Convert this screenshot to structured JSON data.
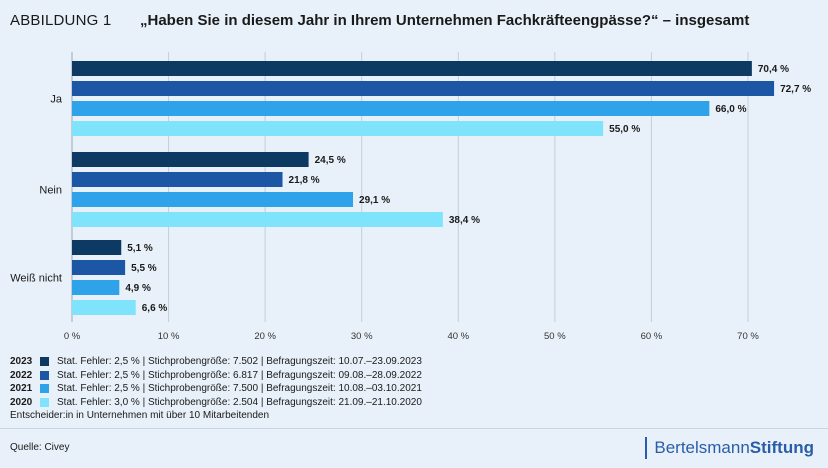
{
  "header": {
    "figure_label": "ABBILDUNG 1",
    "title": "„Haben Sie in diesem Jahr in Ihrem Unternehmen Fachkräfteengpässe?“ – insgesamt"
  },
  "chart_data": {
    "type": "bar",
    "orientation": "horizontal",
    "categories": [
      "Ja",
      "Nein",
      "Weiß nicht"
    ],
    "series": [
      {
        "name": "2023",
        "color": "#0d3a63",
        "values": [
          70.4,
          24.5,
          5.1
        ],
        "labels": [
          "70,4 %",
          "24,5 %",
          "5,1 %"
        ]
      },
      {
        "name": "2022",
        "color": "#1c57a5",
        "values": [
          72.7,
          21.8,
          5.5
        ],
        "labels": [
          "72,7 %",
          "21,8 %",
          "5,5 %"
        ]
      },
      {
        "name": "2021",
        "color": "#2fa3ea",
        "values": [
          66.0,
          29.1,
          4.9
        ],
        "labels": [
          "66,0 %",
          "29,1 %",
          "4,9 %"
        ]
      },
      {
        "name": "2020",
        "color": "#7fe4fb",
        "values": [
          55.0,
          38.4,
          6.6
        ],
        "labels": [
          "55,0 %",
          "38,4  %",
          "6,6 %"
        ]
      }
    ],
    "xlim": [
      0,
      70
    ],
    "xticks": [
      0,
      10,
      20,
      30,
      40,
      50,
      60,
      70
    ],
    "xtick_labels": [
      "0 %",
      "10 %",
      "20 %",
      "30 %",
      "40 %",
      "50 %",
      "60 %",
      "70 %"
    ],
    "grid": true,
    "legend": "bottom-left"
  },
  "legend": [
    {
      "year": "2023",
      "color": "#0d3a63",
      "text": "Stat. Fehler: 2,5 % | Stichprobengröße: 7.502 | Befragungszeit: 10.07.–23.09.2023"
    },
    {
      "year": "2022",
      "color": "#1c57a5",
      "text": "Stat. Fehler: 2,5 % | Stichprobengröße: 6.817 | Befragungszeit: 09.08.–28.09.2022"
    },
    {
      "year": "2021",
      "color": "#2fa3ea",
      "text": "Stat. Fehler: 2,5 % | Stichprobengröße: 7.500 | Befragungszeit: 10.08.–03.10.2021"
    },
    {
      "year": "2020",
      "color": "#7fe4fb",
      "text": "Stat. Fehler: 3,0 % | Stichprobengröße: 2.504 | Befragungszeit: 21.09.–21.10.2020"
    }
  ],
  "footnote": "Entscheider:in in Unternehmen mit über 10 Mitarbeitenden",
  "source": "Quelle: Civey",
  "brand": {
    "part1": "Bertelsmann",
    "part2": "Stiftung",
    "color": "#2a5da8"
  }
}
